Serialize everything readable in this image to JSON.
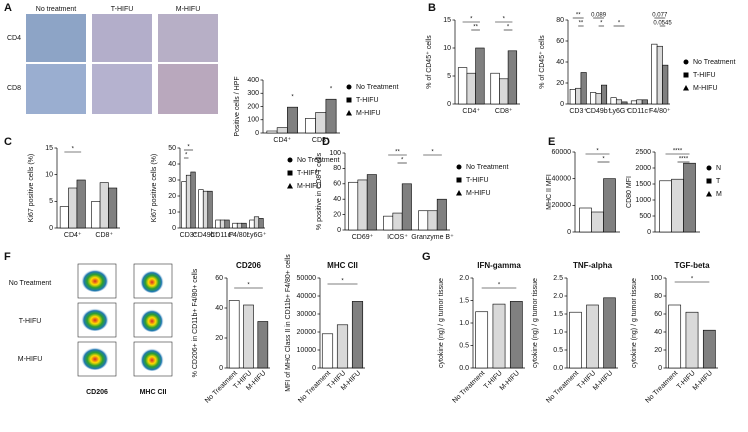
{
  "panel_labels": [
    "A",
    "B",
    "C",
    "D",
    "E",
    "F",
    "G"
  ],
  "histology": {
    "columns": [
      "No treatment",
      "T-HIFU",
      "M-HIFU"
    ],
    "rows": [
      "CD4",
      "CD8"
    ]
  },
  "flow": {
    "rows": [
      "No Treatment",
      "T-HIFU",
      "M-HIFU"
    ],
    "x_labels": [
      "CD206",
      "MHC CII"
    ]
  },
  "chart_data": [
    {
      "type": "bar",
      "ylabel": "Positive  cells / HPF",
      "categories": [
        "CD4⁺",
        "CD8⁺"
      ],
      "series": [
        {
          "name": "No Treatment",
          "color": "#ffffff",
          "values": [
            15,
            110
          ]
        },
        {
          "name": "T-HIFU",
          "color": "#d9d9d9",
          "values": [
            40,
            155
          ]
        },
        {
          "name": "M-HIFU",
          "color": "#808080",
          "values": [
            195,
            255
          ]
        }
      ],
      "ylim": [
        0,
        400
      ],
      "yticks": [
        0,
        100,
        200,
        300,
        400
      ],
      "legend": true,
      "annotations": [
        "*",
        "*"
      ]
    },
    {
      "type": "bar",
      "ylabel": "% of CD45⁺ cells",
      "categories": [
        "CD4⁺",
        "CD8⁺"
      ],
      "series": [
        {
          "color": "#ffffff",
          "values": [
            6.5,
            5.5
          ]
        },
        {
          "color": "#d9d9d9",
          "values": [
            5.5,
            4.5
          ]
        },
        {
          "color": "#808080",
          "values": [
            10,
            9.5
          ]
        }
      ],
      "ylim": [
        0,
        15
      ],
      "yticks": [
        0,
        5,
        10,
        15
      ],
      "annotations": [
        "*",
        "**",
        "*",
        "*"
      ]
    },
    {
      "type": "bar",
      "ylabel": "% of CD45⁺ cells",
      "categories": [
        "CD3⁺",
        "CD49b⁺",
        "Ly6G⁺",
        "CD11c⁺",
        "F4/80⁺"
      ],
      "series": [
        {
          "name": "No Treatment",
          "color": "#ffffff",
          "values": [
            14,
            11,
            6,
            3,
            57
          ]
        },
        {
          "name": "T-HIFU",
          "color": "#d9d9d9",
          "values": [
            15,
            10,
            4,
            4,
            55
          ]
        },
        {
          "name": "M-HIFU",
          "color": "#808080",
          "values": [
            30,
            18,
            2,
            4,
            37
          ]
        }
      ],
      "ylim": [
        0,
        80
      ],
      "yticks": [
        0,
        20,
        40,
        60,
        80
      ],
      "legend": true,
      "annotations": [
        "**",
        "**",
        "0.089",
        "*",
        "*",
        "0.077",
        "0.0545"
      ]
    },
    {
      "type": "bar",
      "ylabel": "Ki67 positive cells (%)",
      "categories": [
        "CD4⁺",
        "CD8⁺"
      ],
      "series": [
        {
          "color": "#ffffff",
          "values": [
            4,
            5
          ]
        },
        {
          "color": "#d9d9d9",
          "values": [
            7.5,
            8.5
          ]
        },
        {
          "color": "#808080",
          "values": [
            9,
            7.5
          ]
        }
      ],
      "ylim": [
        0,
        15
      ],
      "yticks": [
        0,
        5,
        10,
        15
      ],
      "annotations": [
        "*"
      ]
    },
    {
      "type": "bar",
      "ylabel": "Ki67 positive cells (%)",
      "categories": [
        "CD3⁺",
        "CD49b⁺",
        "CD11c⁺",
        "F4/80⁺",
        "Ly6G⁺"
      ],
      "series": [
        {
          "name": "No Treatment",
          "color": "#ffffff",
          "values": [
            29,
            24,
            5,
            3,
            5
          ]
        },
        {
          "name": "T-HIFU",
          "color": "#d9d9d9",
          "values": [
            33,
            23,
            5,
            3,
            7
          ]
        },
        {
          "name": "M-HIFU",
          "color": "#808080",
          "values": [
            35,
            23,
            5,
            3,
            6
          ]
        }
      ],
      "ylim": [
        0,
        50
      ],
      "yticks": [
        0,
        10,
        20,
        30,
        40,
        50
      ],
      "legend": true,
      "annotations": [
        "*",
        "*"
      ]
    },
    {
      "type": "bar",
      "ylabel": "% positive in CD8 T cells",
      "categories": [
        "CD69⁺",
        "ICOS⁺",
        "Granzyme B⁺"
      ],
      "series": [
        {
          "name": "No Treatment",
          "color": "#ffffff",
          "values": [
            62,
            18,
            25
          ]
        },
        {
          "name": "T-HIFU",
          "color": "#d9d9d9",
          "values": [
            65,
            22,
            25
          ]
        },
        {
          "name": "M-HIFU",
          "color": "#808080",
          "values": [
            72,
            60,
            40
          ]
        }
      ],
      "ylim": [
        0,
        100
      ],
      "yticks": [
        0,
        20,
        40,
        60,
        80,
        100
      ],
      "legend": true,
      "annotations": [
        "**",
        "*",
        "*"
      ]
    },
    {
      "type": "bar",
      "ylabel": "MHC II MFI",
      "categories": [
        null
      ],
      "series": [
        {
          "color": "#ffffff",
          "values": [
            18000
          ]
        },
        {
          "color": "#d9d9d9",
          "values": [
            15000
          ]
        },
        {
          "color": "#808080",
          "values": [
            40000
          ]
        }
      ],
      "ylim": [
        0,
        60000
      ],
      "yticks": [
        0,
        20000,
        40000,
        60000
      ],
      "annotations": [
        "*",
        "*"
      ]
    },
    {
      "type": "bar",
      "ylabel": "CD80 MFI",
      "categories": [
        null
      ],
      "series": [
        {
          "name": "N",
          "color": "#ffffff",
          "values": [
            1600
          ]
        },
        {
          "name": "T",
          "color": "#d9d9d9",
          "values": [
            1650
          ]
        },
        {
          "name": "M",
          "color": "#808080",
          "values": [
            2150
          ]
        }
      ],
      "ylim": [
        0,
        2500
      ],
      "yticks": [
        0,
        500,
        1000,
        1500,
        2000,
        2500
      ],
      "legend": true,
      "annotations": [
        "****",
        "****"
      ]
    },
    {
      "type": "bar",
      "title": "CD206",
      "ylabel": "% CD206+ in CD11b+ F4/80+ cells",
      "categories": [
        "No Treatment",
        "T-HIFU",
        "M-HIFU"
      ],
      "values": [
        45,
        42,
        31
      ],
      "colors": [
        "#ffffff",
        "#d9d9d9",
        "#808080"
      ],
      "ylim": [
        0,
        60
      ],
      "yticks": [
        0,
        20,
        40,
        60
      ],
      "annotations": [
        "*"
      ]
    },
    {
      "type": "bar",
      "title": "MHC CII",
      "ylabel": "MFI of MHC Class II in CD11b+ F4/80+ cells",
      "categories": [
        "No Treatment",
        "T-HIFU",
        "M-HIFU"
      ],
      "values": [
        19000,
        24000,
        37000
      ],
      "colors": [
        "#ffffff",
        "#d9d9d9",
        "#808080"
      ],
      "ylim": [
        0,
        50000
      ],
      "yticks": [
        0,
        10000,
        20000,
        30000,
        40000,
        50000
      ],
      "annotations": [
        "*"
      ]
    },
    {
      "type": "bar",
      "title": "IFN-gamma",
      "ylabel": "cytokine (ng) / g tumor tissue",
      "categories": [
        "No Treatment",
        "T-HIFU",
        "M-HIFU"
      ],
      "values": [
        1.25,
        1.42,
        1.48
      ],
      "colors": [
        "#ffffff",
        "#d9d9d9",
        "#808080"
      ],
      "ylim": [
        0,
        2
      ],
      "yticks": [
        {
          "value": 0,
          "label": "0.0"
        },
        0.5,
        {
          "value": 1,
          "label": "1.0"
        },
        1.5,
        {
          "value": 2,
          "label": "2.0"
        }
      ],
      "annotations": [
        "*"
      ]
    },
    {
      "type": "bar",
      "title": "TNF-alpha",
      "ylabel": "cytokine (ng) / g tumor tissue",
      "categories": [
        "No Treatment",
        "T-HIFU",
        "M-HIFU"
      ],
      "values": [
        1.55,
        1.75,
        1.95
      ],
      "colors": [
        "#ffffff",
        "#d9d9d9",
        "#808080"
      ],
      "ylim": [
        0,
        2.5
      ],
      "yticks": [
        {
          "value": 0,
          "label": "0.0"
        },
        0.5,
        {
          "value": 1,
          "label": "1.0"
        },
        1.5,
        {
          "value": 2,
          "label": "2.0"
        },
        2.5
      ]
    },
    {
      "type": "bar",
      "title": "TGF-beta",
      "ylabel": "cytokine (ng) / g tumor tissue",
      "categories": [
        "No Treatment",
        "T-HIFU",
        "M-HIFU"
      ],
      "values": [
        70,
        62,
        42
      ],
      "colors": [
        "#ffffff",
        "#d9d9d9",
        "#808080"
      ],
      "ylim": [
        0,
        100
      ],
      "yticks": [
        0,
        20,
        40,
        60,
        80,
        100
      ],
      "annotations": [
        "*"
      ]
    }
  ]
}
